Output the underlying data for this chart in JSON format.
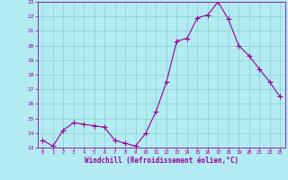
{
  "hours": [
    0,
    1,
    2,
    3,
    4,
    5,
    6,
    7,
    8,
    9,
    10,
    11,
    12,
    13,
    14,
    15,
    16,
    17,
    18,
    19,
    20,
    21,
    22,
    23
  ],
  "values": [
    13.5,
    13.1,
    14.2,
    14.7,
    14.6,
    14.5,
    14.4,
    13.5,
    13.3,
    13.1,
    14.0,
    15.5,
    17.5,
    20.3,
    20.5,
    21.9,
    22.1,
    23.0,
    21.8,
    20.0,
    19.3,
    18.4,
    17.5,
    16.5
  ],
  "ylim": [
    13,
    23
  ],
  "xlim_min": -0.5,
  "xlim_max": 23.5,
  "yticks": [
    13,
    14,
    15,
    16,
    17,
    18,
    19,
    20,
    21,
    22,
    23
  ],
  "xticks": [
    0,
    1,
    2,
    3,
    4,
    5,
    6,
    7,
    8,
    9,
    10,
    11,
    12,
    13,
    14,
    15,
    16,
    17,
    18,
    19,
    20,
    21,
    22,
    23
  ],
  "xlabel": "Windchill (Refroidissement éolien,°C)",
  "line_color": "#990099",
  "marker": "+",
  "bg_color": "#b2ebf2",
  "grid_color": "#80cbc4",
  "axis_color": "#990099",
  "tick_color": "#990099",
  "label_color": "#990099"
}
